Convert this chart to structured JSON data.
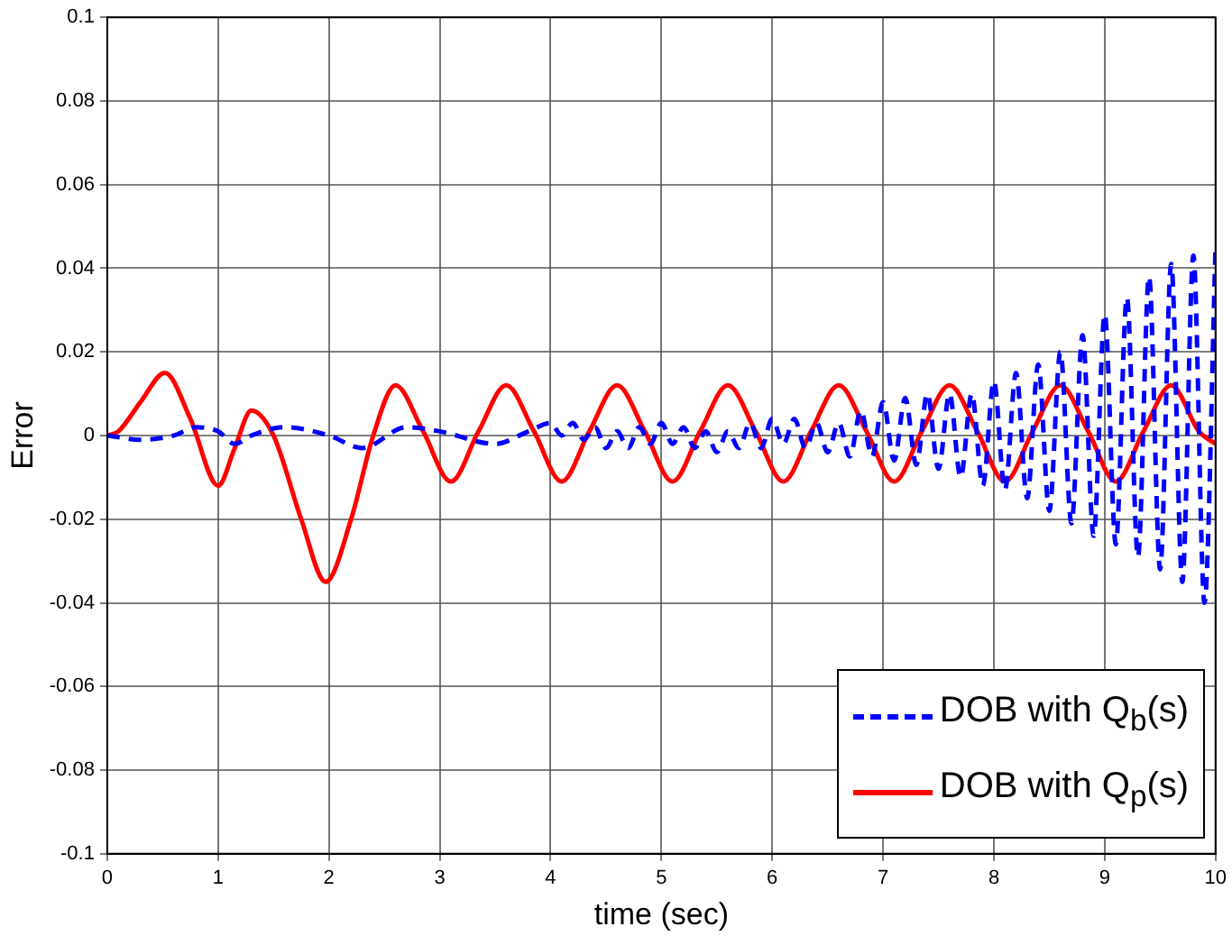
{
  "chart_data": {
    "type": "line",
    "xlabel": "time (sec)",
    "ylabel": "Error",
    "xlim": [
      0,
      10
    ],
    "xticks": [
      0,
      1,
      2,
      3,
      4,
      5,
      6,
      7,
      8,
      9,
      10
    ],
    "ylim": [
      -0.1,
      0.1
    ],
    "yticks": [
      -0.1,
      -0.08,
      -0.06,
      -0.04,
      -0.02,
      0,
      0.02,
      0.04,
      0.06,
      0.08,
      0.1
    ],
    "grid": true,
    "legend": "bottom right",
    "marker": "none",
    "series": [
      {
        "name": "DOB with Q$_{b}$(s)",
        "color": "#0000ff",
        "line_style": "dashed",
        "x": [
          0,
          0.3,
          0.6,
          0.8,
          1.0,
          1.15,
          1.3,
          1.6,
          2.0,
          2.3,
          2.7,
          3.0,
          3.5,
          3.8,
          4.0,
          4.1,
          4.2,
          4.3,
          4.4,
          4.5,
          4.6,
          4.7,
          4.8,
          4.9,
          5.0,
          5.1,
          5.2,
          5.3,
          5.4,
          5.5,
          5.6,
          5.7,
          5.8,
          5.9,
          6.0,
          6.1,
          6.2,
          6.3,
          6.4,
          6.5,
          6.6,
          6.7,
          6.8,
          6.9,
          7.0,
          7.1,
          7.2,
          7.3,
          7.4,
          7.5,
          7.6,
          7.7,
          7.8,
          7.9,
          8.0,
          8.1,
          8.2,
          8.3,
          8.4,
          8.5,
          8.6,
          8.7,
          8.8,
          8.9,
          9.0,
          9.1,
          9.2,
          9.3,
          9.4,
          9.5,
          9.6,
          9.7,
          9.8,
          9.9,
          10.0
        ],
        "values": [
          0,
          -0.001,
          0,
          0.002,
          0.001,
          -0.002,
          0,
          0.002,
          0,
          -0.003,
          0.002,
          0.001,
          -0.002,
          0.001,
          0.003,
          0,
          0.003,
          -0.001,
          0.002,
          -0.003,
          0.001,
          -0.003,
          0.002,
          -0.002,
          0.003,
          -0.002,
          0.002,
          -0.003,
          0.001,
          -0.004,
          0.001,
          -0.003,
          0.003,
          -0.003,
          0.004,
          -0.002,
          0.004,
          -0.003,
          0.003,
          -0.004,
          0.003,
          -0.005,
          0.006,
          -0.005,
          0.008,
          -0.006,
          0.009,
          -0.007,
          0.01,
          -0.008,
          0.01,
          -0.01,
          0.01,
          -0.012,
          0.013,
          -0.013,
          0.015,
          -0.015,
          0.017,
          -0.018,
          0.02,
          -0.021,
          0.024,
          -0.024,
          0.029,
          -0.026,
          0.033,
          -0.029,
          0.038,
          -0.032,
          0.041,
          -0.035,
          0.043,
          -0.04,
          0.045
        ]
      },
      {
        "name": "DOB with Q$_{p}$(s)",
        "color": "#ff0000",
        "line_style": "solid",
        "x": [
          0,
          0.1,
          0.3,
          0.52,
          0.75,
          1.0,
          1.15,
          1.3,
          1.5,
          1.75,
          1.97,
          2.2,
          2.4,
          2.6,
          2.85,
          3.1,
          3.35,
          3.6,
          3.85,
          4.1,
          4.35,
          4.6,
          4.85,
          5.1,
          5.35,
          5.6,
          5.85,
          6.1,
          6.35,
          6.6,
          6.85,
          7.1,
          7.35,
          7.6,
          7.85,
          8.1,
          8.35,
          8.6,
          8.85,
          9.1,
          9.35,
          9.6,
          9.85,
          10.0
        ],
        "values": [
          0,
          0.001,
          0.008,
          0.015,
          0.004,
          -0.012,
          -0.003,
          0.006,
          0,
          -0.02,
          -0.035,
          -0.02,
          0,
          0.012,
          0.001,
          -0.011,
          0.001,
          0.012,
          0.001,
          -0.011,
          0.001,
          0.012,
          0.001,
          -0.011,
          0.001,
          0.012,
          0.001,
          -0.011,
          0.001,
          0.012,
          0.001,
          -0.011,
          0.001,
          0.012,
          0.001,
          -0.011,
          0.001,
          0.012,
          0.001,
          -0.011,
          0.001,
          0.012,
          0.001,
          -0.002
        ]
      }
    ]
  }
}
